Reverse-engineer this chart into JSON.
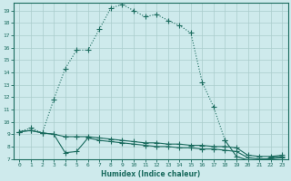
{
  "xlabel": "Humidex (Indice chaleur)",
  "ylabel": "",
  "background_color": "#ceeaec",
  "grid_color": "#b8d8da",
  "line_color": "#1a6b5e",
  "xlim": [
    -0.5,
    23.5
  ],
  "ylim": [
    7,
    19.6
  ],
  "xticks": [
    0,
    1,
    2,
    3,
    4,
    5,
    6,
    7,
    8,
    9,
    10,
    11,
    12,
    13,
    14,
    15,
    16,
    17,
    18,
    19,
    20,
    21,
    22,
    23
  ],
  "yticks": [
    7,
    8,
    9,
    10,
    11,
    12,
    13,
    14,
    15,
    16,
    17,
    18,
    19
  ],
  "curve1_x": [
    0,
    1,
    2,
    3,
    4,
    5,
    6,
    7,
    8,
    9,
    10,
    11,
    12,
    13,
    14,
    15,
    16,
    17,
    18,
    19,
    20,
    21,
    22,
    23
  ],
  "curve1_y": [
    9.2,
    9.5,
    9.1,
    11.8,
    14.3,
    15.8,
    15.8,
    17.5,
    19.2,
    19.5,
    19.0,
    18.5,
    18.7,
    18.2,
    17.8,
    17.2,
    13.2,
    11.2,
    8.5,
    null,
    null,
    null,
    null,
    null
  ],
  "curve2_x": [
    0,
    1,
    2,
    3,
    4,
    5,
    6,
    7,
    8,
    9,
    10,
    11,
    12,
    13,
    14,
    15,
    16,
    17,
    18,
    19,
    20,
    21,
    22,
    23
  ],
  "curve2_y": [
    9.2,
    9.3,
    9.1,
    9.0,
    8.8,
    8.8,
    8.8,
    8.7,
    8.6,
    8.5,
    8.4,
    8.3,
    8.3,
    8.2,
    8.2,
    8.1,
    8.1,
    8.0,
    8.0,
    7.9,
    7.3,
    7.2,
    7.2,
    7.3
  ],
  "curve3_x": [
    0,
    1,
    2,
    3,
    4,
    5,
    6,
    7,
    8,
    9,
    10,
    11,
    12,
    13,
    14,
    15,
    16,
    17,
    18,
    19,
    20,
    21,
    22,
    23
  ],
  "curve3_y": [
    9.2,
    9.3,
    9.1,
    9.0,
    7.5,
    7.6,
    8.7,
    8.5,
    8.4,
    8.3,
    8.2,
    8.1,
    8.0,
    8.0,
    7.9,
    7.9,
    7.8,
    7.8,
    7.7,
    7.6,
    7.1,
    7.0,
    7.0,
    7.1
  ],
  "curve4_x": [
    18,
    19,
    20,
    21,
    22,
    23
  ],
  "curve4_y": [
    8.5,
    7.2,
    6.9,
    6.8,
    7.1,
    7.2
  ],
  "markersize": 2.0,
  "linewidth": 0.8
}
